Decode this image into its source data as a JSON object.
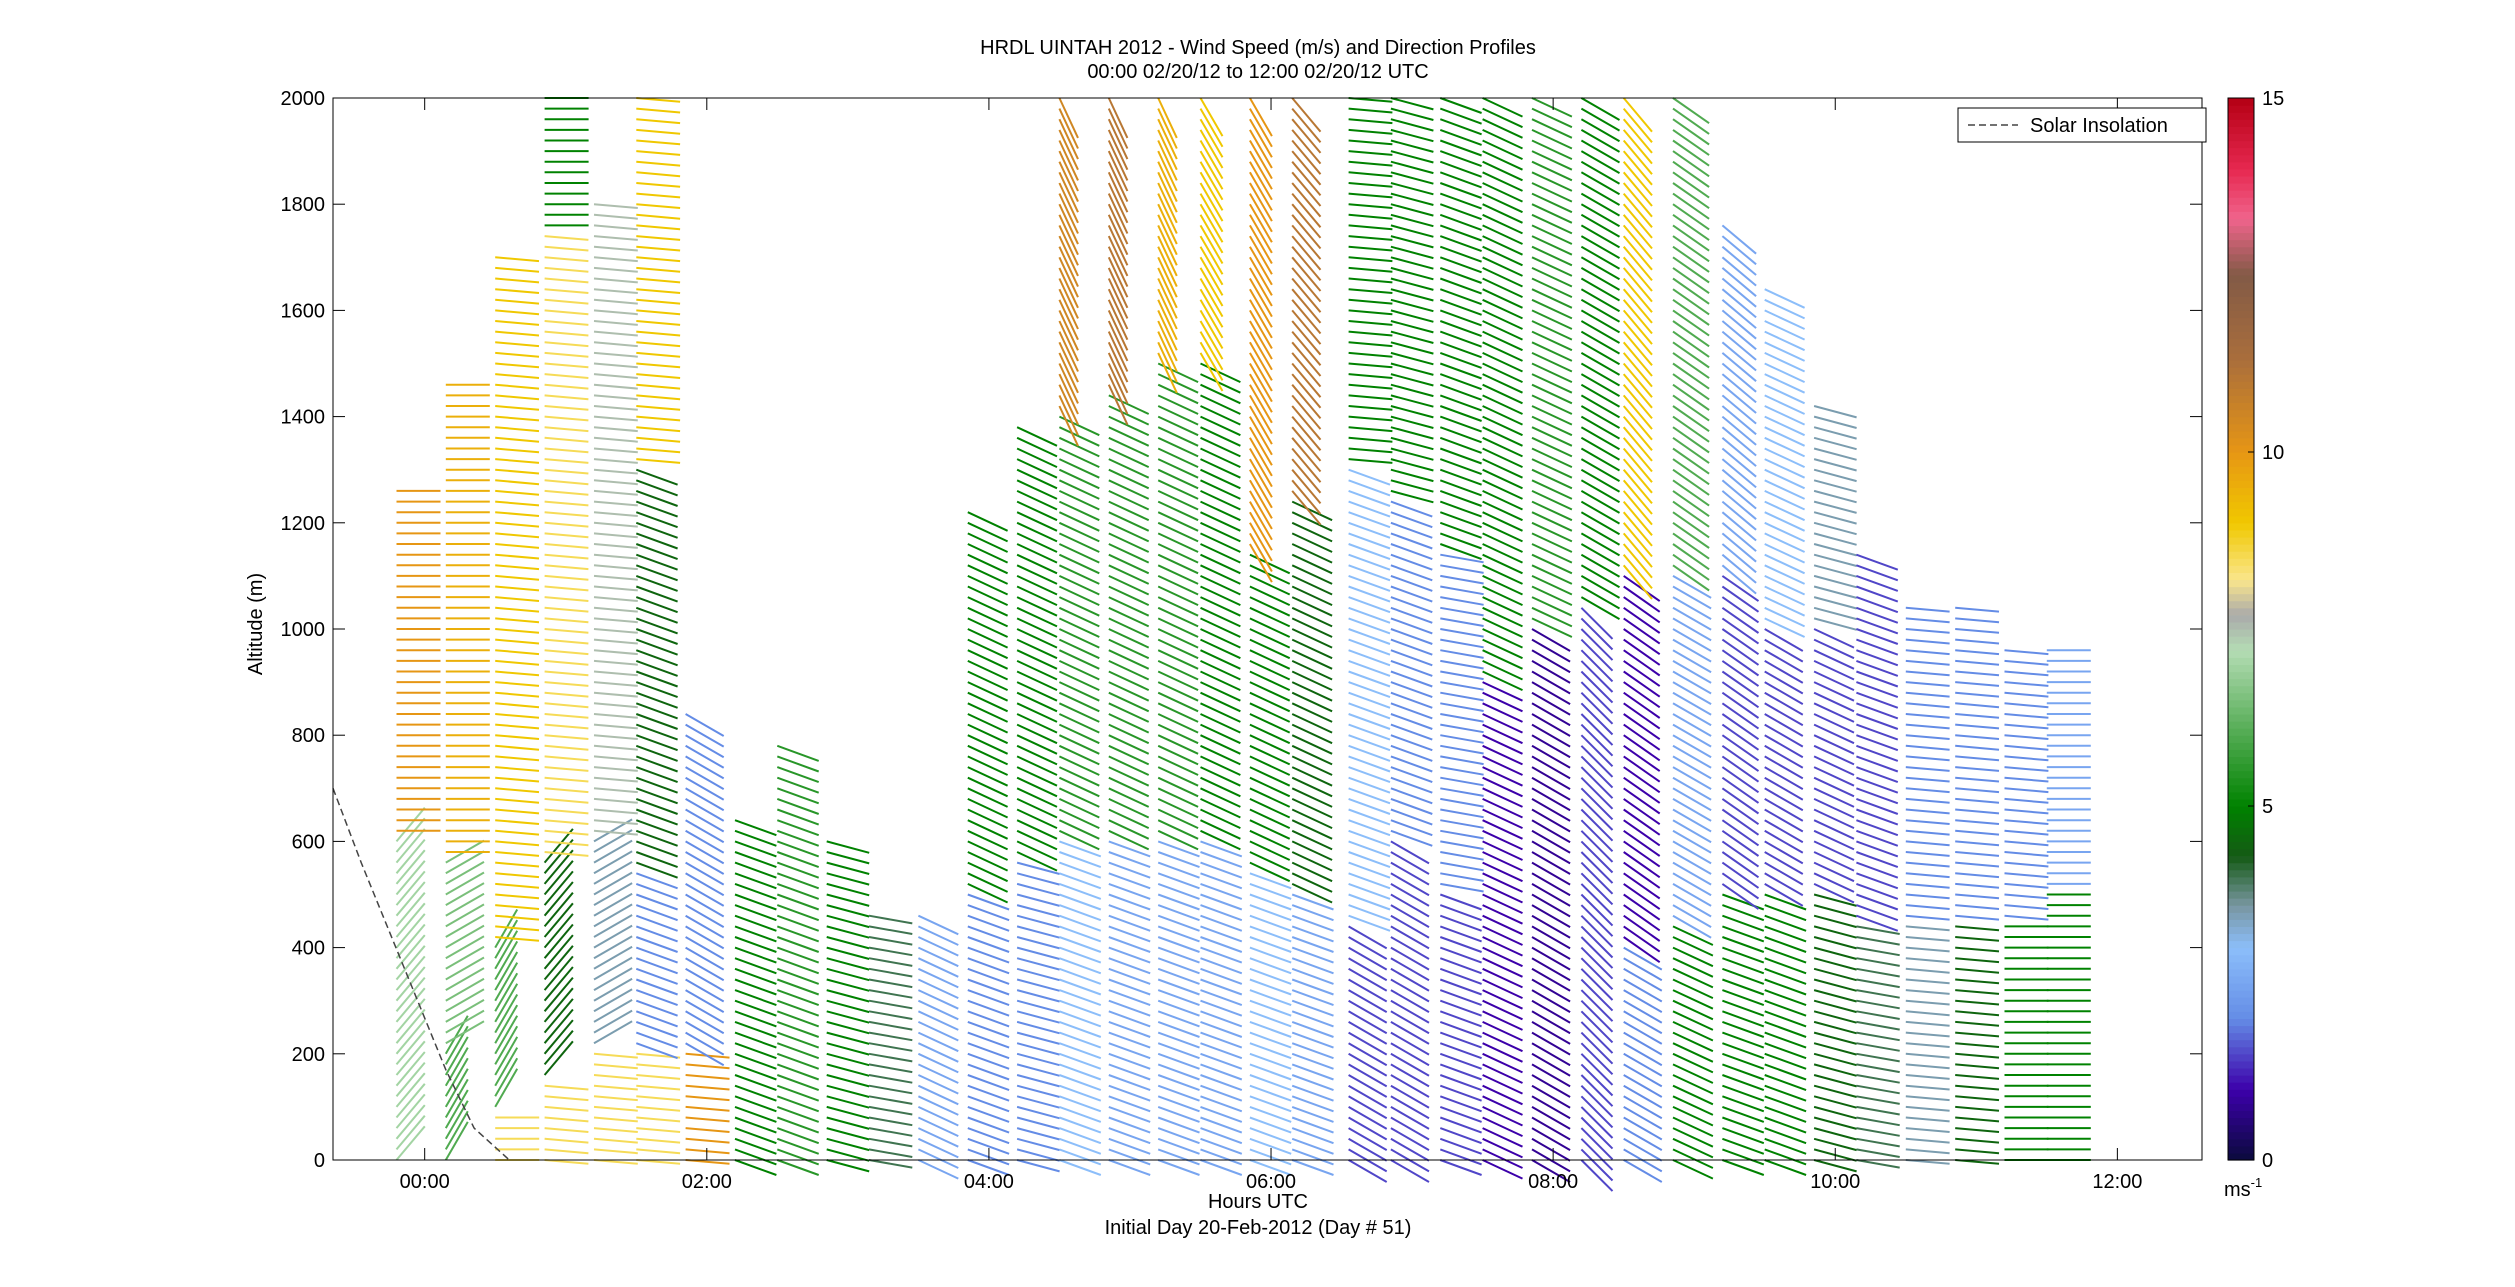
{
  "chart_data": {
    "type": "wind_barb_profile",
    "title": "HRDL UINTAH 2012 - Wind Speed (m/s) and Direction Profiles",
    "subtitle": "00:00 02/20/12 to 12:00 02/20/12  UTC",
    "xlabel": "Hours UTC",
    "xlabel2": "Initial Day 20-Feb-2012 (Day # 51)",
    "ylabel": "Altitude (m)",
    "x_ticks": [
      "00:00",
      "02:00",
      "04:00",
      "06:00",
      "08:00",
      "10:00",
      "12:00"
    ],
    "x_tick_hours": [
      0,
      2,
      4,
      6,
      8,
      10,
      12
    ],
    "xlim_hours": [
      -0.65,
      12.6
    ],
    "y_ticks": [
      0,
      200,
      400,
      600,
      800,
      1000,
      1200,
      1400,
      1600,
      1800,
      2000
    ],
    "ylim": [
      0,
      2000
    ],
    "legend": {
      "entries": [
        "Solar Insolation"
      ],
      "placement": "top-right"
    },
    "colorbar": {
      "label": "ms",
      "label_exponent": "-1",
      "range": [
        0,
        15
      ],
      "ticks": [
        0,
        5,
        10,
        15
      ]
    },
    "solar_insolation_line": [
      {
        "hour": -0.65,
        "alt": 700
      },
      {
        "hour": -0.45,
        "alt": 560
      },
      {
        "hour": -0.25,
        "alt": 430
      },
      {
        "hour": -0.05,
        "alt": 300
      },
      {
        "hour": 0.15,
        "alt": 170
      },
      {
        "hour": 0.35,
        "alt": 60
      },
      {
        "hour": 0.6,
        "alt": 0
      }
    ],
    "profiles": [
      {
        "hour": -0.2,
        "top": 1260,
        "bands": [
          [
            0,
            600,
            7.0,
            40
          ],
          [
            600,
            1260,
            10.0,
            90
          ]
        ]
      },
      {
        "hour": 0.15,
        "top": 1470,
        "bands": [
          [
            0,
            200,
            6.0,
            30
          ],
          [
            200,
            560,
            6.5,
            60
          ],
          [
            560,
            1470,
            9.5,
            90
          ]
        ]
      },
      {
        "hour": 0.5,
        "top": 1700,
        "bands": [
          [
            0,
            80,
            8.5,
            90
          ],
          [
            80,
            400,
            6.0,
            30
          ],
          [
            400,
            1700,
            9.0,
            95
          ]
        ]
      },
      {
        "hour": 0.85,
        "top": 2000,
        "bands": [
          [
            0,
            150,
            8.5,
            95
          ],
          [
            150,
            560,
            4.5,
            40
          ],
          [
            560,
            1750,
            8.5,
            95
          ],
          [
            1750,
            2000,
            5.0,
            90
          ]
        ]
      },
      {
        "hour": 1.2,
        "top": 1810,
        "bands": [
          [
            0,
            200,
            8.5,
            95
          ],
          [
            200,
            600,
            3.5,
            60
          ],
          [
            600,
            1810,
            7.5,
            95
          ]
        ]
      },
      {
        "hour": 1.5,
        "top": 2000,
        "bands": [
          [
            0,
            200,
            8.5,
            95
          ],
          [
            200,
            550,
            2.0,
            110
          ],
          [
            550,
            1300,
            4.5,
            110
          ],
          [
            1300,
            2000,
            9.0,
            95
          ]
        ]
      },
      {
        "hour": 1.85,
        "top": 850,
        "bands": [
          [
            0,
            200,
            10.0,
            95
          ],
          [
            200,
            850,
            2.0,
            120
          ]
        ]
      },
      {
        "hour": 2.2,
        "top": 640,
        "bands": [
          [
            0,
            640,
            5.0,
            110
          ]
        ]
      },
      {
        "hour": 2.5,
        "top": 780,
        "bands": [
          [
            0,
            780,
            5.5,
            110
          ]
        ]
      },
      {
        "hour": 2.85,
        "top": 600,
        "bands": [
          [
            0,
            600,
            5.0,
            105
          ]
        ]
      },
      {
        "hour": 3.15,
        "top": 470,
        "bands": [
          [
            0,
            470,
            4.0,
            100
          ]
        ]
      },
      {
        "hour": 3.5,
        "top": 470,
        "bands": [
          [
            0,
            470,
            2.5,
            115
          ]
        ]
      },
      {
        "hour": 3.85,
        "top": 1220,
        "bands": [
          [
            0,
            500,
            2.0,
            110
          ],
          [
            500,
            1220,
            5.0,
            115
          ]
        ]
      },
      {
        "hour": 4.2,
        "top": 1380,
        "bands": [
          [
            0,
            560,
            2.0,
            105
          ],
          [
            560,
            1380,
            5.0,
            115
          ]
        ]
      },
      {
        "hour": 4.5,
        "top": 2000,
        "bands": [
          [
            0,
            600,
            3.0,
            110
          ],
          [
            600,
            1400,
            5.5,
            115
          ],
          [
            1400,
            2000,
            10.5,
            155
          ]
        ]
      },
      {
        "hour": 4.85,
        "top": 2000,
        "bands": [
          [
            0,
            600,
            2.5,
            110
          ],
          [
            600,
            1450,
            5.5,
            115
          ],
          [
            1450,
            2000,
            11.0,
            155
          ]
        ]
      },
      {
        "hour": 5.2,
        "top": 2000,
        "bands": [
          [
            0,
            600,
            2.5,
            110
          ],
          [
            600,
            1500,
            5.5,
            115
          ],
          [
            1500,
            2000,
            9.5,
            155
          ]
        ]
      },
      {
        "hour": 5.5,
        "top": 2000,
        "bands": [
          [
            0,
            600,
            2.5,
            110
          ],
          [
            600,
            1500,
            5.0,
            115
          ],
          [
            1500,
            2000,
            9.0,
            150
          ]
        ]
      },
      {
        "hour": 5.85,
        "top": 2000,
        "bands": [
          [
            0,
            550,
            3.0,
            110
          ],
          [
            550,
            1150,
            5.0,
            115
          ],
          [
            1150,
            2000,
            10.0,
            150
          ]
        ]
      },
      {
        "hour": 6.15,
        "top": 2000,
        "bands": [
          [
            0,
            500,
            2.5,
            110
          ],
          [
            500,
            1250,
            4.5,
            115
          ],
          [
            1250,
            2000,
            11.0,
            140
          ]
        ]
      },
      {
        "hour": 6.55,
        "top": 2000,
        "bands": [
          [
            0,
            450,
            1.5,
            120
          ],
          [
            450,
            1300,
            3.0,
            110
          ],
          [
            1300,
            2000,
            5.0,
            95
          ]
        ]
      },
      {
        "hour": 6.85,
        "top": 2000,
        "bands": [
          [
            0,
            600,
            1.5,
            120
          ],
          [
            600,
            1250,
            2.0,
            110
          ],
          [
            1250,
            2000,
            5.0,
            105
          ]
        ]
      },
      {
        "hour": 7.2,
        "top": 2000,
        "bands": [
          [
            0,
            500,
            1.5,
            110
          ],
          [
            500,
            1150,
            2.0,
            100
          ],
          [
            1150,
            2000,
            5.0,
            110
          ]
        ]
      },
      {
        "hour": 7.5,
        "top": 2000,
        "bands": [
          [
            0,
            900,
            1.0,
            115
          ],
          [
            900,
            2000,
            5.0,
            115
          ]
        ]
      },
      {
        "hour": 7.85,
        "top": 2000,
        "bands": [
          [
            0,
            1000,
            0.8,
            120
          ],
          [
            1000,
            2000,
            5.5,
            115
          ]
        ]
      },
      {
        "hour": 8.2,
        "top": 2000,
        "bands": [
          [
            0,
            1050,
            1.5,
            135
          ],
          [
            1050,
            2000,
            5.0,
            120
          ]
        ]
      },
      {
        "hour": 8.5,
        "top": 2000,
        "bands": [
          [
            0,
            400,
            2.0,
            120
          ],
          [
            400,
            1100,
            1.0,
            125
          ],
          [
            1100,
            2000,
            9.0,
            140
          ]
        ]
      },
      {
        "hour": 8.85,
        "top": 2000,
        "bands": [
          [
            0,
            450,
            5.0,
            115
          ],
          [
            450,
            1100,
            2.5,
            120
          ],
          [
            1100,
            2000,
            6.0,
            125
          ]
        ]
      },
      {
        "hour": 9.2,
        "top": 1760,
        "bands": [
          [
            0,
            500,
            5.0,
            110
          ],
          [
            500,
            1100,
            1.5,
            125
          ],
          [
            1100,
            1760,
            2.5,
            130
          ]
        ]
      },
      {
        "hour": 9.5,
        "top": 1640,
        "bands": [
          [
            0,
            500,
            5.0,
            110
          ],
          [
            500,
            1000,
            1.5,
            120
          ],
          [
            1000,
            1640,
            3.0,
            115
          ]
        ]
      },
      {
        "hour": 9.85,
        "top": 1420,
        "bands": [
          [
            0,
            500,
            4.5,
            105
          ],
          [
            500,
            1000,
            1.5,
            115
          ],
          [
            1000,
            1420,
            3.5,
            105
          ]
        ]
      },
      {
        "hour": 10.15,
        "top": 1150,
        "bands": [
          [
            0,
            450,
            4.0,
            100
          ],
          [
            450,
            1150,
            1.5,
            110
          ]
        ]
      },
      {
        "hour": 10.5,
        "top": 1050,
        "bands": [
          [
            0,
            450,
            3.5,
            95
          ],
          [
            450,
            1050,
            2.0,
            95
          ]
        ]
      },
      {
        "hour": 10.85,
        "top": 1040,
        "bands": [
          [
            0,
            450,
            4.5,
            95
          ],
          [
            450,
            1040,
            2.0,
            95
          ]
        ]
      },
      {
        "hour": 11.2,
        "top": 960,
        "bands": [
          [
            0,
            450,
            5.0,
            90
          ],
          [
            450,
            960,
            2.0,
            95
          ]
        ]
      },
      {
        "hour": 11.5,
        "top": 960,
        "bands": [
          [
            0,
            500,
            5.0,
            90
          ],
          [
            500,
            960,
            2.5,
            90
          ]
        ]
      }
    ]
  }
}
